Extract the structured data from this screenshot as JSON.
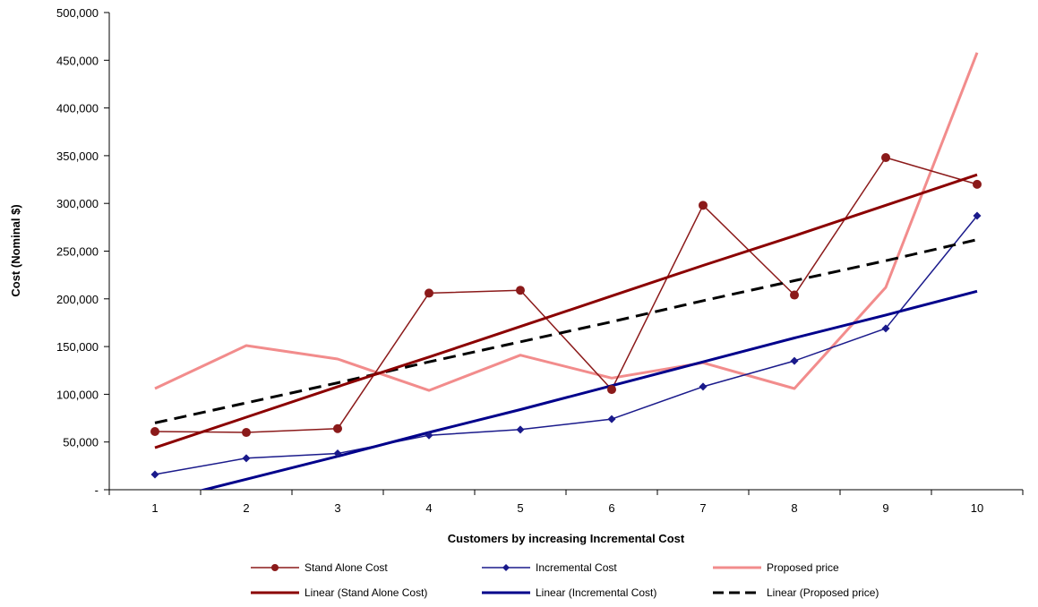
{
  "chart_data": {
    "type": "line",
    "xlabel": "Customers by increasing Incremental Cost",
    "ylabel": "Cost (Nominal $)",
    "categories": [
      "1",
      "2",
      "3",
      "4",
      "5",
      "6",
      "7",
      "8",
      "9",
      "10"
    ],
    "ylim": [
      0,
      500000
    ],
    "y_ticks": [
      0,
      50000,
      100000,
      150000,
      200000,
      250000,
      300000,
      350000,
      400000,
      450000,
      500000
    ],
    "y_tick_labels": [
      "-",
      "50,000",
      "100,000",
      "150,000",
      "200,000",
      "250,000",
      "300,000",
      "350,000",
      "400,000",
      "450,000",
      "500,000"
    ],
    "grid": false,
    "legend_position": "bottom",
    "series": [
      {
        "name": "Stand Alone Cost",
        "values": [
          61000,
          60000,
          64000,
          206000,
          209000,
          105000,
          298000,
          204000,
          348000,
          320000
        ],
        "color": "#8b1a1a",
        "marker": "circle",
        "dash": "solid",
        "kind": "data"
      },
      {
        "name": "Incremental Cost",
        "values": [
          16000,
          33000,
          38000,
          57000,
          63000,
          74000,
          108000,
          135000,
          169000,
          287000
        ],
        "color": "#1a1a8b",
        "marker": "diamond",
        "dash": "solid",
        "kind": "data"
      },
      {
        "name": "Proposed price",
        "values": [
          106000,
          151000,
          137000,
          104000,
          141000,
          117000,
          133000,
          106000,
          212000,
          458000
        ],
        "color": "#f28c8c",
        "marker": "none",
        "dash": "solid",
        "kind": "data"
      },
      {
        "name": "Linear (Stand Alone Cost)",
        "values": [
          44000,
          76000,
          108000,
          139000,
          171000,
          203000,
          235000,
          266000,
          298000,
          330000
        ],
        "color": "#8b0000",
        "marker": "none",
        "dash": "solid",
        "kind": "trend"
      },
      {
        "name": "Linear (Incremental Cost)",
        "values": [
          -13000,
          11000,
          35000,
          60000,
          84000,
          109000,
          134000,
          159000,
          183000,
          208000
        ],
        "color": "#00008b",
        "marker": "none",
        "dash": "solid",
        "kind": "trend"
      },
      {
        "name": "Linear (Proposed price)",
        "values": [
          70000,
          91000,
          112000,
          134000,
          155000,
          176000,
          198000,
          219000,
          240000,
          262000
        ],
        "color": "#000000",
        "marker": "none",
        "dash": "dashed",
        "kind": "trend"
      }
    ]
  }
}
